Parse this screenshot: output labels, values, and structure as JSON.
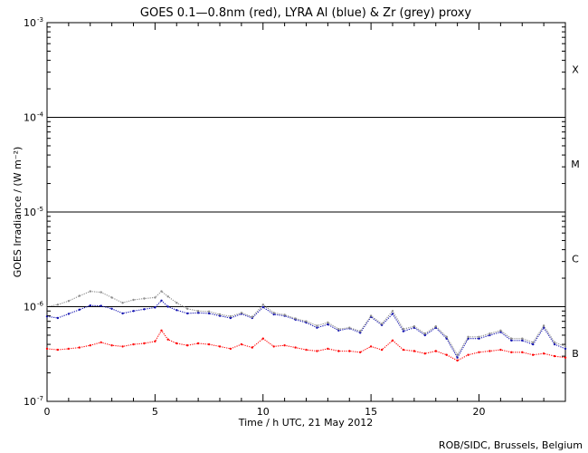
{
  "chart_data": {
    "type": "scatter",
    "title": "GOES 0.1—0.8nm (red), LYRA Al (blue) & Zr (grey) proxy",
    "xlabel": "Time / h UTC, 21 May 2012",
    "ylabel": "GOES Irradiance / (W m⁻²)",
    "x_range": [
      0,
      24
    ],
    "y_range": [
      1e-07,
      0.001
    ],
    "y_scale": "log",
    "x_ticks": [
      0,
      5,
      10,
      15,
      20
    ],
    "y_ticks": [
      {
        "base": "10",
        "exp": "-7",
        "value": 1e-07
      },
      {
        "base": "10",
        "exp": "-6",
        "value": 1e-06
      },
      {
        "base": "10",
        "exp": "-5",
        "value": 1e-05
      },
      {
        "base": "10",
        "exp": "-4",
        "value": 0.0001
      },
      {
        "base": "10",
        "exp": "-3",
        "value": 0.001
      }
    ],
    "flare_class_lines": [
      1e-06,
      1e-05,
      0.0001
    ],
    "flare_classes": [
      {
        "label": "B",
        "value": 3.2e-07
      },
      {
        "label": "C",
        "value": 3.2e-06
      },
      {
        "label": "M",
        "value": 3.2e-05
      },
      {
        "label": "X",
        "value": 0.00032
      }
    ],
    "series": [
      {
        "name": "GOES 0.1—0.8nm",
        "color": "#ff0000",
        "x": [
          0,
          0.5,
          1,
          1.5,
          2,
          2.5,
          3,
          3.5,
          4,
          4.5,
          5,
          5.3,
          5.6,
          6,
          6.5,
          7,
          7.5,
          8,
          8.5,
          9,
          9.5,
          10,
          10.5,
          11,
          11.5,
          12,
          12.5,
          13,
          13.5,
          14,
          14.5,
          15,
          15.5,
          16,
          16.5,
          17,
          17.5,
          18,
          18.5,
          19,
          19.5,
          20,
          20.5,
          21,
          21.5,
          22,
          22.5,
          23,
          23.5,
          24
        ],
        "y": [
          3.6e-07,
          3.5e-07,
          3.6e-07,
          3.7e-07,
          3.9e-07,
          4.2e-07,
          3.9e-07,
          3.8e-07,
          4e-07,
          4.1e-07,
          4.3e-07,
          5.6e-07,
          4.5e-07,
          4.1e-07,
          3.9e-07,
          4.1e-07,
          4e-07,
          3.8e-07,
          3.6e-07,
          4e-07,
          3.7e-07,
          4.6e-07,
          3.8e-07,
          3.9e-07,
          3.7e-07,
          3.5e-07,
          3.4e-07,
          3.6e-07,
          3.4e-07,
          3.4e-07,
          3.3e-07,
          3.8e-07,
          3.5e-07,
          4.4e-07,
          3.5e-07,
          3.4e-07,
          3.2e-07,
          3.4e-07,
          3.1e-07,
          2.7e-07,
          3.1e-07,
          3.3e-07,
          3.4e-07,
          3.5e-07,
          3.3e-07,
          3.3e-07,
          3.1e-07,
          3.2e-07,
          3e-07,
          2.9e-07
        ]
      },
      {
        "name": "LYRA Al",
        "color": "#1010b0",
        "x": [
          0,
          0.5,
          1,
          1.5,
          2,
          2.5,
          3,
          3.5,
          4,
          4.5,
          5,
          5.3,
          5.6,
          6,
          6.5,
          7,
          7.5,
          8,
          8.5,
          9,
          9.5,
          10,
          10.5,
          11,
          11.5,
          12,
          12.5,
          13,
          13.5,
          14,
          14.5,
          15,
          15.5,
          16,
          16.5,
          17,
          17.5,
          18,
          18.5,
          19,
          19.5,
          20,
          20.5,
          21,
          21.5,
          22,
          22.5,
          23,
          23.5,
          24
        ],
        "y": [
          7.9e-07,
          7.6e-07,
          8.4e-07,
          9.3e-07,
          1.03e-06,
          1.02e-06,
          9.5e-07,
          8.5e-07,
          9e-07,
          9.4e-07,
          9.8e-07,
          1.16e-06,
          1e-06,
          9.2e-07,
          8.5e-07,
          8.6e-07,
          8.5e-07,
          8e-07,
          7.6e-07,
          8.4e-07,
          7.6e-07,
          9.9e-07,
          8.3e-07,
          8e-07,
          7.3e-07,
          6.8e-07,
          6e-07,
          6.5e-07,
          5.6e-07,
          5.9e-07,
          5.3e-07,
          7.8e-07,
          6.4e-07,
          8.4e-07,
          5.5e-07,
          6e-07,
          5e-07,
          6e-07,
          4.6e-07,
          2.9e-07,
          4.6e-07,
          4.6e-07,
          5e-07,
          5.4e-07,
          4.4e-07,
          4.4e-07,
          4e-07,
          6e-07,
          4e-07,
          3.6e-07
        ]
      },
      {
        "name": "Zr",
        "color": "#8c8c8c",
        "x": [
          0,
          0.5,
          1,
          1.5,
          2,
          2.5,
          3,
          3.5,
          4,
          4.5,
          5,
          5.3,
          5.6,
          6,
          6.5,
          7,
          7.5,
          8,
          8.5,
          9,
          9.5,
          10,
          10.5,
          11,
          11.5,
          12,
          12.5,
          13,
          13.5,
          14,
          14.5,
          15,
          15.5,
          16,
          16.5,
          17,
          17.5,
          18,
          18.5,
          19,
          19.5,
          20,
          20.5,
          21,
          21.5,
          22,
          22.5,
          23,
          23.5,
          24
        ],
        "y": [
          1e-06,
          1.05e-06,
          1.15e-06,
          1.3e-06,
          1.45e-06,
          1.42e-06,
          1.25e-06,
          1.1e-06,
          1.18e-06,
          1.22e-06,
          1.25e-06,
          1.45e-06,
          1.28e-06,
          1.1e-06,
          9.5e-07,
          9e-07,
          8.9e-07,
          8.3e-07,
          7.9e-07,
          8.6e-07,
          7.8e-07,
          1.05e-06,
          8.6e-07,
          8.2e-07,
          7.5e-07,
          7e-07,
          6.3e-07,
          6.8e-07,
          5.8e-07,
          6e-07,
          5.5e-07,
          8e-07,
          6.6e-07,
          9e-07,
          5.8e-07,
          6.2e-07,
          5.2e-07,
          6.2e-07,
          4.8e-07,
          3.1e-07,
          4.8e-07,
          4.8e-07,
          5.2e-07,
          5.6e-07,
          4.6e-07,
          4.6e-07,
          4.2e-07,
          6.3e-07,
          4.2e-07,
          3.8e-07
        ]
      }
    ],
    "credit": "ROB/SIDC, Brussels, Belgium"
  }
}
